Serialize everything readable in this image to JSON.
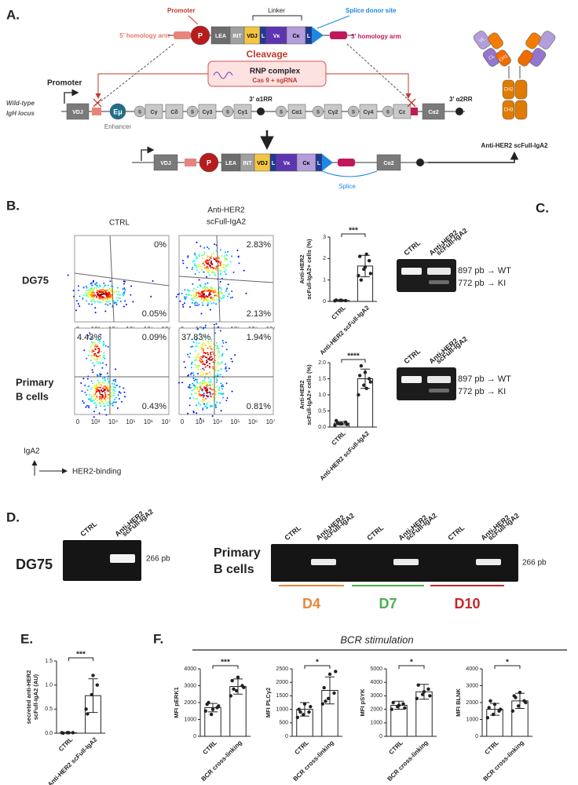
{
  "panel_a": {
    "label": "A.",
    "donor": {
      "promoter": "Promoter",
      "linker": "Linker",
      "splice_donor": "Splice donor site",
      "arm5": "5' homology arm",
      "arm3": "3' homology arm",
      "elements": [
        "P",
        "LEA",
        "INT",
        "VDJ",
        "L",
        "Vκ",
        "Cκ",
        "L"
      ]
    },
    "cleavage": "Cleavage",
    "rnp": "RNP complex",
    "cas": "Cas 9 + sgRNA",
    "locus": {
      "promoter": "Promoter",
      "name": [
        "Wild-type",
        "IgH locus"
      ],
      "elements": [
        "VDJ",
        "Eμ",
        "S",
        "Cγ",
        "Cδ",
        "S",
        "Cγ3",
        "S",
        "Cγ1",
        "S",
        "Cα1",
        "S",
        "Cγ2",
        "S",
        "Cγ4",
        "S",
        "Cε",
        "Cα2"
      ],
      "enhancer": "Enhancer",
      "rr1": "3' α1RR",
      "rr2": "3' α2RR"
    },
    "result": {
      "elements": [
        "VDJ",
        "P",
        "LEA",
        "INT",
        "VDJ",
        "L",
        "Vκ",
        "Cκ",
        "L",
        "Cα2"
      ],
      "splice": "Splice"
    },
    "antibody": {
      "title": "Anti-HER2 scFull-IgA2",
      "domains": [
        "VL",
        "CL",
        "CH1",
        "CH2",
        "CH3"
      ]
    }
  },
  "panel_b": {
    "label": "B.",
    "col_ctrl": "CTRL",
    "col_anti": [
      "Anti-HER2",
      "scFull-IgA2"
    ],
    "rows": [
      {
        "name": [
          "DG75"
        ],
        "plots": [
          {
            "tr": "0%",
            "br": "0.05%"
          },
          {
            "tr": "2.83%",
            "br": "2.13%"
          }
        ]
      },
      {
        "name": [
          "Primary",
          "B cells"
        ],
        "plots": [
          {
            "tl": "4.43%",
            "tr": "0.09%",
            "br": "0.43%"
          },
          {
            "tl": "37.83%",
            "tr": "1.94%",
            "br": "0.81%"
          }
        ]
      }
    ],
    "xtick_labels": [
      "0",
      "10³",
      "10⁴",
      "10⁵",
      "10⁶",
      "10⁷"
    ],
    "y_axis": "IgA2",
    "x_axis": "HER2-binding",
    "charts": [
      {
        "type": "bar",
        "ylabel": [
          "Anti-HER2",
          "scFull-IgA2+ cells (%)"
        ],
        "categories": [
          "CTRL",
          "Anti-HER2 scFull-IgA2"
        ],
        "values": [
          0.05,
          1.65
        ],
        "errors": [
          0.02,
          0.5
        ],
        "points": [
          [
            0.03,
            0.05,
            0.04,
            0.06,
            0.05
          ],
          [
            1.2,
            1.5,
            1.9,
            2.1,
            1.6,
            1.3,
            1.0,
            2.2
          ]
        ],
        "ylim": [
          0,
          3
        ],
        "yticks": [
          0,
          1,
          2,
          3
        ],
        "significance": "***"
      },
      {
        "type": "bar",
        "ylabel": [
          "Anti-HER2",
          "scFull-IgA2+ cells (%)"
        ],
        "categories": [
          "CTRL",
          "Anti-HER2 scFull-IgA2"
        ],
        "values": [
          0.12,
          1.5
        ],
        "errors": [
          0.05,
          0.3
        ],
        "points": [
          [
            0.05,
            0.1,
            0.15,
            0.2,
            0.1,
            0.08,
            0.12
          ],
          [
            1.0,
            1.3,
            1.5,
            1.6,
            1.7,
            1.4,
            1.9,
            1.2
          ]
        ],
        "ylim": [
          0,
          2
        ],
        "yticks": [
          {
            "value": 0,
            "label": "0.0"
          },
          {
            "value": 0.5,
            "label": "0.5"
          },
          {
            "value": 1,
            "label": "1.0"
          },
          {
            "value": 1.5,
            "label": "1.5"
          },
          {
            "value": 2,
            "label": "2.0"
          }
        ],
        "significance": "****"
      }
    ]
  },
  "panel_c": {
    "label": "C.",
    "gels": [
      {
        "lanes": [
          [
            "CTRL"
          ],
          [
            "Anti-HER2",
            "scFull-IgA2"
          ]
        ],
        "bands": [
          "897 pb → WT",
          "772 pb → KI"
        ]
      },
      {
        "lanes": [
          [
            "CTRL"
          ],
          [
            "Anti-HER2",
            "scFull-IgA2"
          ]
        ],
        "bands": [
          "897 pb → WT",
          "772 pb → KI"
        ]
      }
    ]
  },
  "panel_d": {
    "label": "D.",
    "dg75": {
      "name": "DG75",
      "lanes": [
        [
          "CTRL"
        ],
        [
          "Anti-HER2",
          "scFull-IgA2"
        ]
      ],
      "band": "266 pb"
    },
    "primary": {
      "name": [
        "Primary",
        "B cells"
      ],
      "lanes": [
        [
          "CTRL"
        ],
        [
          "Anti-HER2",
          "scFull-IgA2"
        ],
        [
          "CTRL"
        ],
        [
          "Anti-HER2",
          "scFull-IgA2"
        ],
        [
          "CTRL"
        ],
        [
          "Anti-HER2",
          "scFull-IgA2"
        ]
      ],
      "band": "266 pb",
      "days": [
        "D4",
        "D7",
        "D10"
      ]
    }
  },
  "panel_e": {
    "label": "E.",
    "chart": {
      "type": "bar",
      "ylabel": [
        "secreted anti-HER2",
        "scFull-IgA2 (AU)"
      ],
      "categories": [
        "CTRL",
        "Anti-HER2 scFull-IgA2"
      ],
      "values": [
        0.01,
        0.78
      ],
      "errors": [
        0.005,
        0.35
      ],
      "points": [
        [
          0.01,
          0.01,
          0.01,
          0.0,
          0.01
        ],
        [
          0.5,
          0.8,
          1.0,
          0.4,
          1.2
        ]
      ],
      "ylim": [
        0,
        1.5
      ],
      "yticks": [
        {
          "value": 0,
          "label": "0.0"
        },
        {
          "value": 0.5,
          "label": "0.5"
        },
        {
          "value": 1,
          "label": "1.0"
        },
        {
          "value": 1.5,
          "label": "1.5"
        }
      ],
      "significance": "***"
    }
  },
  "panel_f": {
    "label": "F.",
    "title": "BCR stimulation",
    "charts": [
      {
        "type": "bar",
        "ylabel": [
          "MFI pERK1"
        ],
        "categories": [
          "CTRL",
          "BCR cross-linking"
        ],
        "values": [
          1700,
          2950
        ],
        "errors": [
          250,
          450
        ],
        "points": [
          [
            1500,
            1300,
            1700,
            1900,
            1600,
            1800,
            2000
          ],
          [
            2400,
            2700,
            3000,
            3300,
            3500,
            2900,
            2800
          ]
        ],
        "ylim": [
          0,
          4000
        ],
        "yticks": [
          0,
          1000,
          2000,
          3000,
          4000
        ],
        "significance": "***"
      },
      {
        "type": "bar",
        "ylabel": [
          "MFI PLCγ2"
        ],
        "categories": [
          "CTRL",
          "BCR cross-linking"
        ],
        "values": [
          1000,
          1700
        ],
        "errors": [
          250,
          500
        ],
        "points": [
          [
            700,
            800,
            900,
            1000,
            1200,
            1100,
            900
          ],
          [
            1200,
            1400,
            1600,
            1800,
            2300,
            2400,
            1300
          ]
        ],
        "ylim": [
          0,
          2500
        ],
        "yticks": [
          0,
          500,
          1000,
          1500,
          2000,
          2500
        ],
        "significance": "*"
      },
      {
        "type": "bar",
        "ylabel": [
          "MFI pSYK"
        ],
        "categories": [
          "CTRL",
          "BCR cross-linking"
        ],
        "values": [
          2300,
          3300
        ],
        "errors": [
          300,
          550
        ],
        "points": [
          [
            2000,
            2200,
            2400,
            2500,
            2300,
            2100
          ],
          [
            2800,
            3100,
            3500,
            3800,
            3300,
            3000
          ]
        ],
        "ylim": [
          0,
          5000
        ],
        "yticks": [
          0,
          1000,
          2000,
          3000,
          4000,
          5000
        ],
        "significance": "*"
      },
      {
        "type": "bar",
        "ylabel": [
          "MFI BLNK"
        ],
        "categories": [
          "CTRL",
          "BCR cross-linking"
        ],
        "values": [
          1600,
          2100
        ],
        "errors": [
          350,
          450
        ],
        "points": [
          [
            1100,
            1300,
            1500,
            1700,
            1900,
            1600,
            2100
          ],
          [
            1500,
            1800,
            2100,
            2400,
            2600,
            2000,
            2300
          ]
        ],
        "ylim": [
          0,
          4000
        ],
        "yticks": [
          0,
          1000,
          2000,
          3000,
          4000
        ],
        "significance": "*"
      }
    ]
  }
}
